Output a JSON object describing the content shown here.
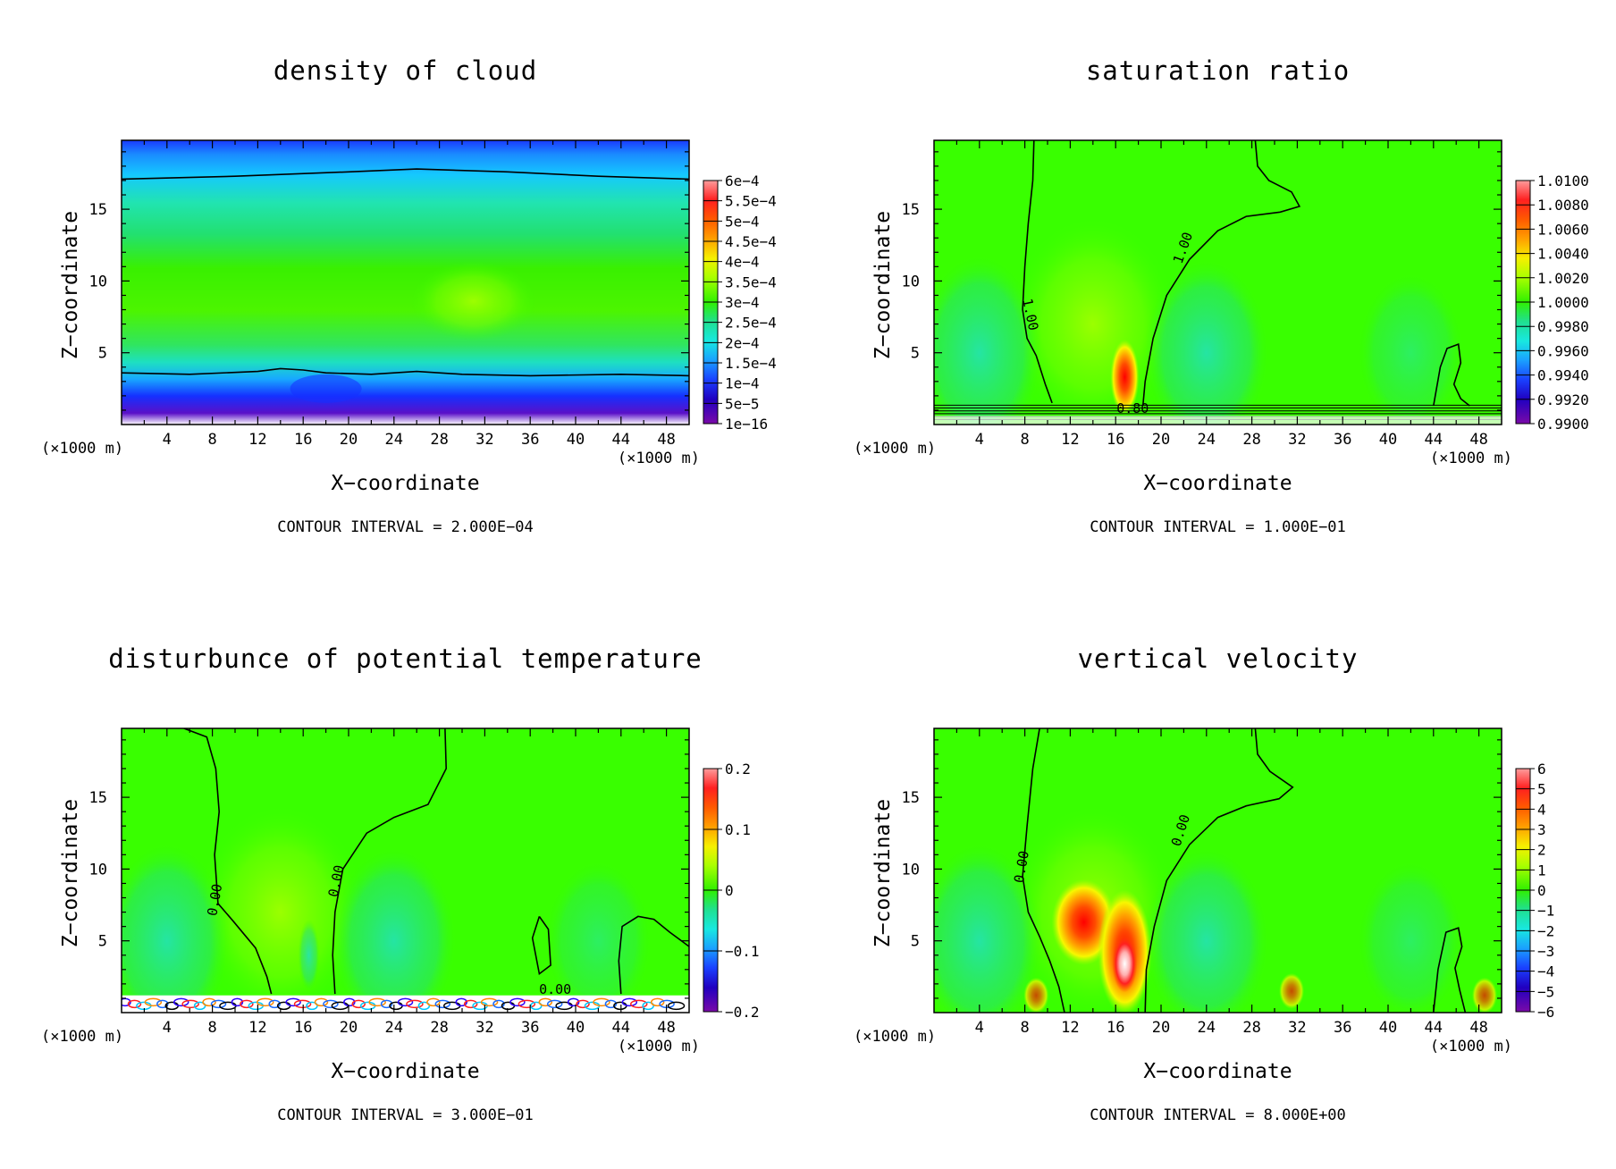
{
  "figure": "four-panel contour plot",
  "colors": {
    "palette": [
      "#7a0aa8",
      "#2b00ff",
      "#1a6bff",
      "#00c8ff",
      "#21e4b0",
      "#21e060",
      "#39ff00",
      "#a6ff00",
      "#f7f700",
      "#ffa300",
      "#ff4a00",
      "#ff0000",
      "#ff9999"
    ]
  },
  "chart_data": [
    {
      "type": "contour",
      "title": "density of cloud",
      "xlabel": "X−coordinate",
      "ylabel": "Z−coordinate",
      "x_unit": "(×1000 m)",
      "y_unit": "(×1000 m)",
      "xlim": [
        0,
        50
      ],
      "ylim": [
        0,
        19.8
      ],
      "x_ticks": [
        4,
        8,
        12,
        16,
        20,
        24,
        28,
        32,
        36,
        40,
        44,
        48
      ],
      "y_ticks": [
        5,
        10,
        15
      ],
      "colorbar_labels": [
        "6e−4",
        "5.5e−4",
        "5e−4",
        "4.5e−4",
        "4e−4",
        "3.5e−4",
        "3e−4",
        "2.5e−4",
        "2e−4",
        "1.5e−4",
        "1e−4",
        "5e−5",
        "1e−16"
      ],
      "contour_interval": "CONTOUR INTERVAL = 2.000E−04",
      "contour_labels": [],
      "contours": [
        {
          "level": "2.000E-04",
          "points": [
            [
              0,
              17.1
            ],
            [
              10,
              17.3
            ],
            [
              20,
              17.6
            ],
            [
              26,
              17.8
            ],
            [
              34,
              17.6
            ],
            [
              42,
              17.3
            ],
            [
              50,
              17.1
            ]
          ]
        },
        {
          "level": "2.000E-04",
          "points": [
            [
              0,
              3.6
            ],
            [
              6,
              3.5
            ],
            [
              12,
              3.7
            ],
            [
              14,
              3.9
            ],
            [
              16,
              3.8
            ],
            [
              18,
              3.6
            ],
            [
              22,
              3.5
            ],
            [
              26,
              3.7
            ],
            [
              30,
              3.5
            ],
            [
              36,
              3.4
            ],
            [
              44,
              3.5
            ],
            [
              50,
              3.4
            ]
          ]
        }
      ]
    },
    {
      "type": "contour",
      "title": "saturation ratio",
      "xlabel": "X−coordinate",
      "ylabel": "Z−coordinate",
      "x_unit": "(×1000 m)",
      "y_unit": "(×1000 m)",
      "xlim": [
        0,
        50
      ],
      "ylim": [
        0,
        19.8
      ],
      "x_ticks": [
        4,
        8,
        12,
        16,
        20,
        24,
        28,
        32,
        36,
        40,
        44,
        48
      ],
      "y_ticks": [
        5,
        10,
        15
      ],
      "colorbar_labels": [
        "1.0100",
        "1.0080",
        "1.0060",
        "1.0040",
        "1.0020",
        "1.0000",
        "0.9980",
        "0.9960",
        "0.9940",
        "0.9920",
        "0.9900"
      ],
      "contour_interval": "CONTOUR INTERVAL = 1.000E−01",
      "contour_labels": [
        "1.00",
        "1.00",
        "0.80"
      ],
      "contours": [
        {
          "level": "1.00",
          "points": [
            [
              8.8,
              19.8
            ],
            [
              8.7,
              17
            ],
            [
              8.3,
              14
            ],
            [
              8.0,
              11
            ],
            [
              7.8,
              8
            ],
            [
              8.2,
              6
            ],
            [
              9.0,
              4.8
            ],
            [
              9.8,
              2.8
            ],
            [
              10.4,
              1.5
            ]
          ]
        },
        {
          "level": "1.00",
          "points": [
            [
              28.3,
              19.8
            ],
            [
              28.5,
              18
            ],
            [
              29.5,
              17
            ],
            [
              31.5,
              16.2
            ],
            [
              32.2,
              15.2
            ],
            [
              30.5,
              14.8
            ],
            [
              27.5,
              14.5
            ],
            [
              25,
              13.5
            ],
            [
              22.5,
              11.5
            ],
            [
              20.5,
              9
            ],
            [
              19.3,
              6
            ],
            [
              18.6,
              3
            ],
            [
              18.4,
              1.3
            ]
          ]
        },
        {
          "level": "1.00",
          "points": [
            [
              44,
              1.3
            ],
            [
              44.6,
              4
            ],
            [
              45.2,
              5.3
            ],
            [
              46.2,
              5.6
            ],
            [
              46.4,
              4.3
            ],
            [
              45.8,
              2.8
            ],
            [
              46.4,
              1.8
            ],
            [
              47.2,
              1.3
            ]
          ]
        }
      ]
    },
    {
      "type": "contour",
      "title": "disturbunce of potential temperature",
      "xlabel": "X−coordinate",
      "ylabel": "Z−coordinate",
      "x_unit": "(×1000 m)",
      "y_unit": "(×1000 m)",
      "xlim": [
        0,
        50
      ],
      "ylim": [
        0,
        19.8
      ],
      "x_ticks": [
        4,
        8,
        12,
        16,
        20,
        24,
        28,
        32,
        36,
        40,
        44,
        48
      ],
      "y_ticks": [
        5,
        10,
        15
      ],
      "colorbar_labels": [
        "0.2",
        "0.1",
        "0",
        "−0.1",
        "−0.2"
      ],
      "contour_interval": "CONTOUR INTERVAL = 3.000E−01",
      "contour_labels": [
        "0.00",
        "0.00",
        "0.00"
      ],
      "contours": [
        {
          "level": "0.00",
          "points": [
            [
              5.5,
              19.8
            ],
            [
              7.5,
              19.2
            ],
            [
              8.3,
              17
            ],
            [
              8.6,
              14
            ],
            [
              8.2,
              11
            ],
            [
              8.5,
              7.6
            ],
            [
              9.8,
              6.4
            ],
            [
              11.8,
              4.5
            ],
            [
              12.8,
              2.5
            ],
            [
              13.2,
              1.3
            ]
          ]
        },
        {
          "level": "0.00",
          "points": [
            [
              28.5,
              19.8
            ],
            [
              28.6,
              17
            ],
            [
              27,
              14.5
            ],
            [
              24,
              13.6
            ],
            [
              21.6,
              12.5
            ],
            [
              19.5,
              10
            ],
            [
              18.8,
              7
            ],
            [
              18.6,
              4
            ],
            [
              18.8,
              1.3
            ]
          ]
        },
        {
          "level": "0.00",
          "points": [
            [
              36.8,
              6.7
            ],
            [
              37.6,
              5.8
            ],
            [
              37.8,
              3.3
            ],
            [
              36.8,
              2.7
            ],
            [
              36.2,
              5.2
            ],
            [
              36.8,
              6.7
            ]
          ]
        },
        {
          "level": "0.00",
          "points": [
            [
              44,
              1.3
            ],
            [
              43.8,
              3.6
            ],
            [
              44.1,
              6
            ],
            [
              45.5,
              6.7
            ],
            [
              46.9,
              6.5
            ],
            [
              48.3,
              5.6
            ],
            [
              50,
              4.6
            ]
          ]
        }
      ]
    },
    {
      "type": "contour",
      "title": "vertical velocity",
      "xlabel": "X−coordinate",
      "ylabel": "Z−coordinate",
      "x_unit": "(×1000 m)",
      "y_unit": "(×1000 m)",
      "xlim": [
        0,
        50
      ],
      "ylim": [
        0,
        19.8
      ],
      "x_ticks": [
        4,
        8,
        12,
        16,
        20,
        24,
        28,
        32,
        36,
        40,
        44,
        48
      ],
      "y_ticks": [
        5,
        10,
        15
      ],
      "colorbar_labels": [
        "6",
        "5",
        "4",
        "3",
        "2",
        "1",
        "0",
        "−1",
        "−2",
        "−3",
        "−4",
        "−5",
        "−6"
      ],
      "contour_interval": "CONTOUR INTERVAL = 8.000E+00",
      "contour_labels": [
        "0.00",
        "0.00"
      ],
      "contours": [
        {
          "level": "0.00",
          "points": [
            [
              9.3,
              19.8
            ],
            [
              8.7,
              17
            ],
            [
              8.2,
              13
            ],
            [
              7.8,
              9.5
            ],
            [
              8.3,
              7
            ],
            [
              9.3,
              5.3
            ],
            [
              10.2,
              3.6
            ],
            [
              11,
              1.8
            ],
            [
              11.5,
              0
            ]
          ]
        },
        {
          "level": "0.00",
          "points": [
            [
              28.3,
              19.8
            ],
            [
              28.5,
              18
            ],
            [
              29.6,
              16.8
            ],
            [
              31.6,
              15.7
            ],
            [
              30.4,
              14.9
            ],
            [
              27.5,
              14.4
            ],
            [
              25,
              13.6
            ],
            [
              22.5,
              11.7
            ],
            [
              20.5,
              9.2
            ],
            [
              19.4,
              6
            ],
            [
              18.7,
              3
            ],
            [
              18.6,
              0
            ]
          ]
        },
        {
          "level": "0.00",
          "points": [
            [
              44,
              0
            ],
            [
              44.4,
              3
            ],
            [
              45.1,
              5.6
            ],
            [
              46.2,
              5.9
            ],
            [
              46.5,
              4.6
            ],
            [
              45.9,
              3.1
            ],
            [
              46.3,
              1.6
            ],
            [
              46.8,
              0
            ]
          ]
        }
      ]
    }
  ]
}
